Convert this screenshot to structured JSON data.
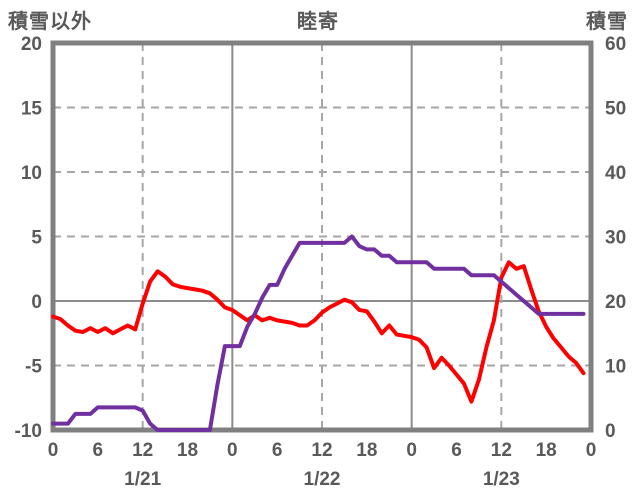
{
  "header": {
    "left_axis_title": "積雪以外",
    "chart_title": "睦寄",
    "right_axis_title": "積雪"
  },
  "colors": {
    "temperature_line": "#ff0000",
    "snow_line": "#7030a0",
    "frame": "#808080",
    "grid_solid": "#8c8c8c",
    "grid_dashed": "#a6a6a6",
    "text": "#595959",
    "background": "#ffffff"
  },
  "chart_data": {
    "type": "line",
    "title": "睦寄",
    "grid": true,
    "legend": "none",
    "left_axis": {
      "label": "積雪以外",
      "min": -10,
      "max": 20,
      "tick_labels": [
        "20",
        "15",
        "10",
        "5",
        "0",
        "-5",
        "-10"
      ],
      "h_gridlines": [
        {
          "value": 15,
          "style": "dashed"
        },
        {
          "value": 10,
          "style": "dashed"
        },
        {
          "value": 5,
          "style": "dashed"
        },
        {
          "value": 0,
          "style": "solid"
        },
        {
          "value": -5,
          "style": "dashed"
        }
      ]
    },
    "right_axis": {
      "label": "積雪",
      "min": 0,
      "max": 60,
      "tick_labels": [
        "60",
        "50",
        "40",
        "30",
        "20",
        "10",
        "0"
      ]
    },
    "x_axis": {
      "span_hours": 72,
      "tick_step_hours": 6,
      "tick_labels": [
        "0",
        "6",
        "12",
        "18",
        "0",
        "6",
        "12",
        "18",
        "0",
        "6",
        "12",
        "18",
        "0"
      ],
      "date_labels": [
        {
          "label": "1/21",
          "hour": 12
        },
        {
          "label": "1/22",
          "hour": 36
        },
        {
          "label": "1/23",
          "hour": 60
        }
      ],
      "dashed_gridline_hours": [
        12,
        36,
        60
      ],
      "solid_gridline_hours": [
        24,
        48
      ]
    },
    "series": [
      {
        "name": "積雪以外",
        "axis": "left",
        "color": "#ff0000",
        "values": [
          -1.2,
          -1.4,
          -1.9,
          -2.3,
          -2.4,
          -2.1,
          -2.4,
          -2.1,
          -2.5,
          -2.2,
          -1.9,
          -2.2,
          -0.2,
          1.5,
          2.3,
          1.9,
          1.3,
          1.1,
          1.0,
          0.9,
          0.8,
          0.6,
          0.1,
          -0.5,
          -0.7,
          -1.1,
          -1.5,
          -1.1,
          -1.5,
          -1.3,
          -1.5,
          -1.6,
          -1.7,
          -1.9,
          -1.9,
          -1.5,
          -0.9,
          -0.5,
          -0.2,
          0.1,
          -0.1,
          -0.7,
          -0.8,
          -1.6,
          -2.5,
          -1.9,
          -2.6,
          -2.7,
          -2.8,
          -3.0,
          -3.6,
          -5.2,
          -4.4,
          -5.0,
          -5.7,
          -6.4,
          -7.8,
          -6.1,
          -3.6,
          -1.5,
          1.8,
          3.0,
          2.5,
          2.7,
          0.9,
          -0.8,
          -2.0,
          -2.9,
          -3.6,
          -4.3,
          -4.8,
          -5.6
        ]
      },
      {
        "name": "積雪",
        "axis": "right",
        "color": "#7030a0",
        "values": [
          1,
          1,
          1,
          2.5,
          2.5,
          2.5,
          3.5,
          3.5,
          3.5,
          3.5,
          3.5,
          3.5,
          3,
          1,
          0,
          0,
          0,
          0,
          0,
          0,
          0,
          0,
          7,
          13,
          13,
          13,
          16,
          18,
          20.5,
          22.5,
          22.5,
          25,
          27,
          29,
          29,
          29,
          29,
          29,
          29,
          29,
          30,
          28.5,
          28,
          28,
          27,
          27,
          26,
          26,
          26,
          26,
          26,
          25,
          25,
          25,
          25,
          25,
          24,
          24,
          24,
          24,
          23,
          22,
          21,
          20,
          19,
          18,
          18,
          18,
          18,
          18,
          18,
          18
        ]
      }
    ]
  }
}
